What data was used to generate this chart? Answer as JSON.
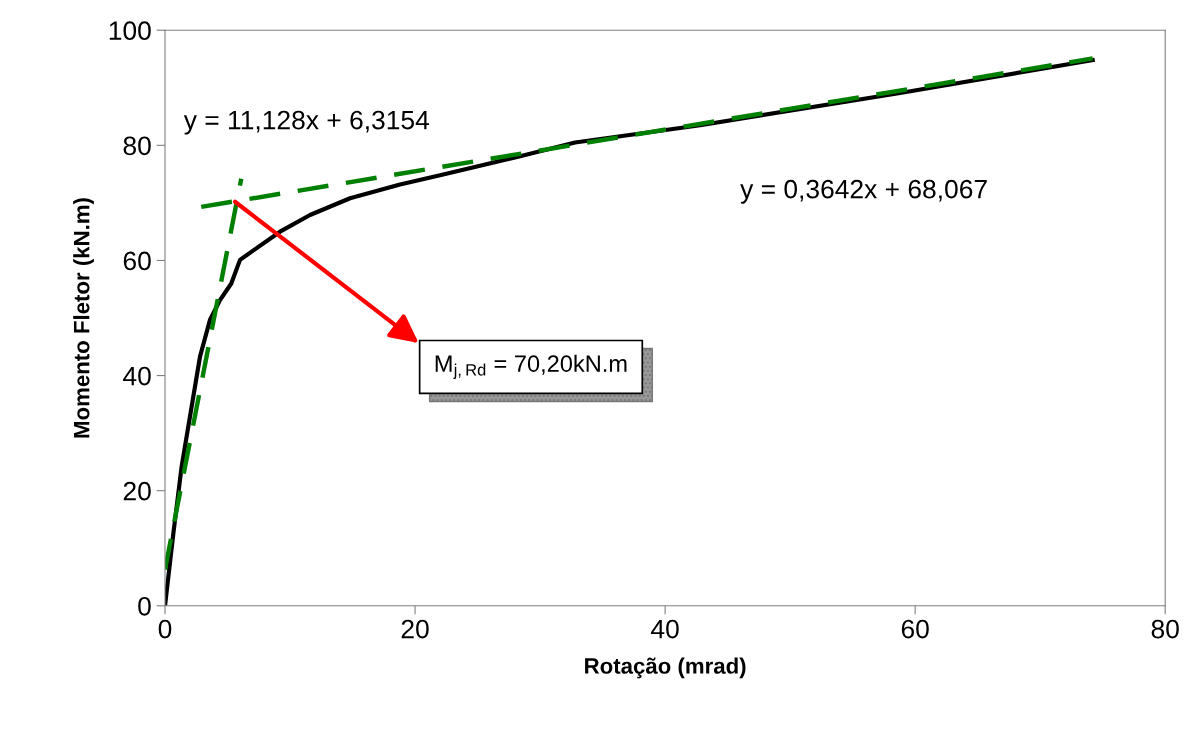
{
  "chart_data": {
    "type": "line",
    "xlabel": "Rotação (mrad)",
    "ylabel": "Momento Fletor (kN.m)",
    "xlim": [
      0,
      80
    ],
    "xticks": [
      0,
      20,
      40,
      60,
      80
    ],
    "ylim": [
      0,
      100
    ],
    "yticks": [
      0,
      20,
      40,
      60,
      80,
      100
    ],
    "grid": false,
    "legend": false,
    "series": [
      {
        "color": "#000000",
        "line_style": "solid",
        "x": [
          0,
          0.67,
          1.33,
          2.0,
          2.8,
          3.6,
          4.4,
          5.3,
          6.0,
          7.3,
          9.2,
          11.6,
          14.8,
          18.8,
          22.0,
          28.0,
          32.8,
          42.8,
          58.8,
          74.2
        ],
        "values": [
          0,
          12.6,
          24.2,
          32.9,
          43.3,
          49.7,
          53.1,
          56.0,
          60.1,
          62.1,
          65.0,
          67.9,
          70.8,
          73.2,
          74.8,
          77.9,
          80.5,
          83.5,
          89.1,
          94.8
        ]
      },
      {
        "color": "#008000",
        "line_style": "dashed",
        "x": [
          0,
          6.1
        ],
        "values": [
          6.3,
          74.2
        ]
      },
      {
        "color": "#008000",
        "line_style": "dashed",
        "x": [
          2.9,
          74.2
        ],
        "values": [
          69.3,
          95.1
        ]
      }
    ],
    "annotations": [
      "y = 11,128x + 6,3154",
      "y = 0,3642x + 68,067",
      {
        "text": "M$_{j,Rd}$ = 70,20kN.m",
        "x": 5.6,
        "y": 70.2
      }
    ]
  }
}
